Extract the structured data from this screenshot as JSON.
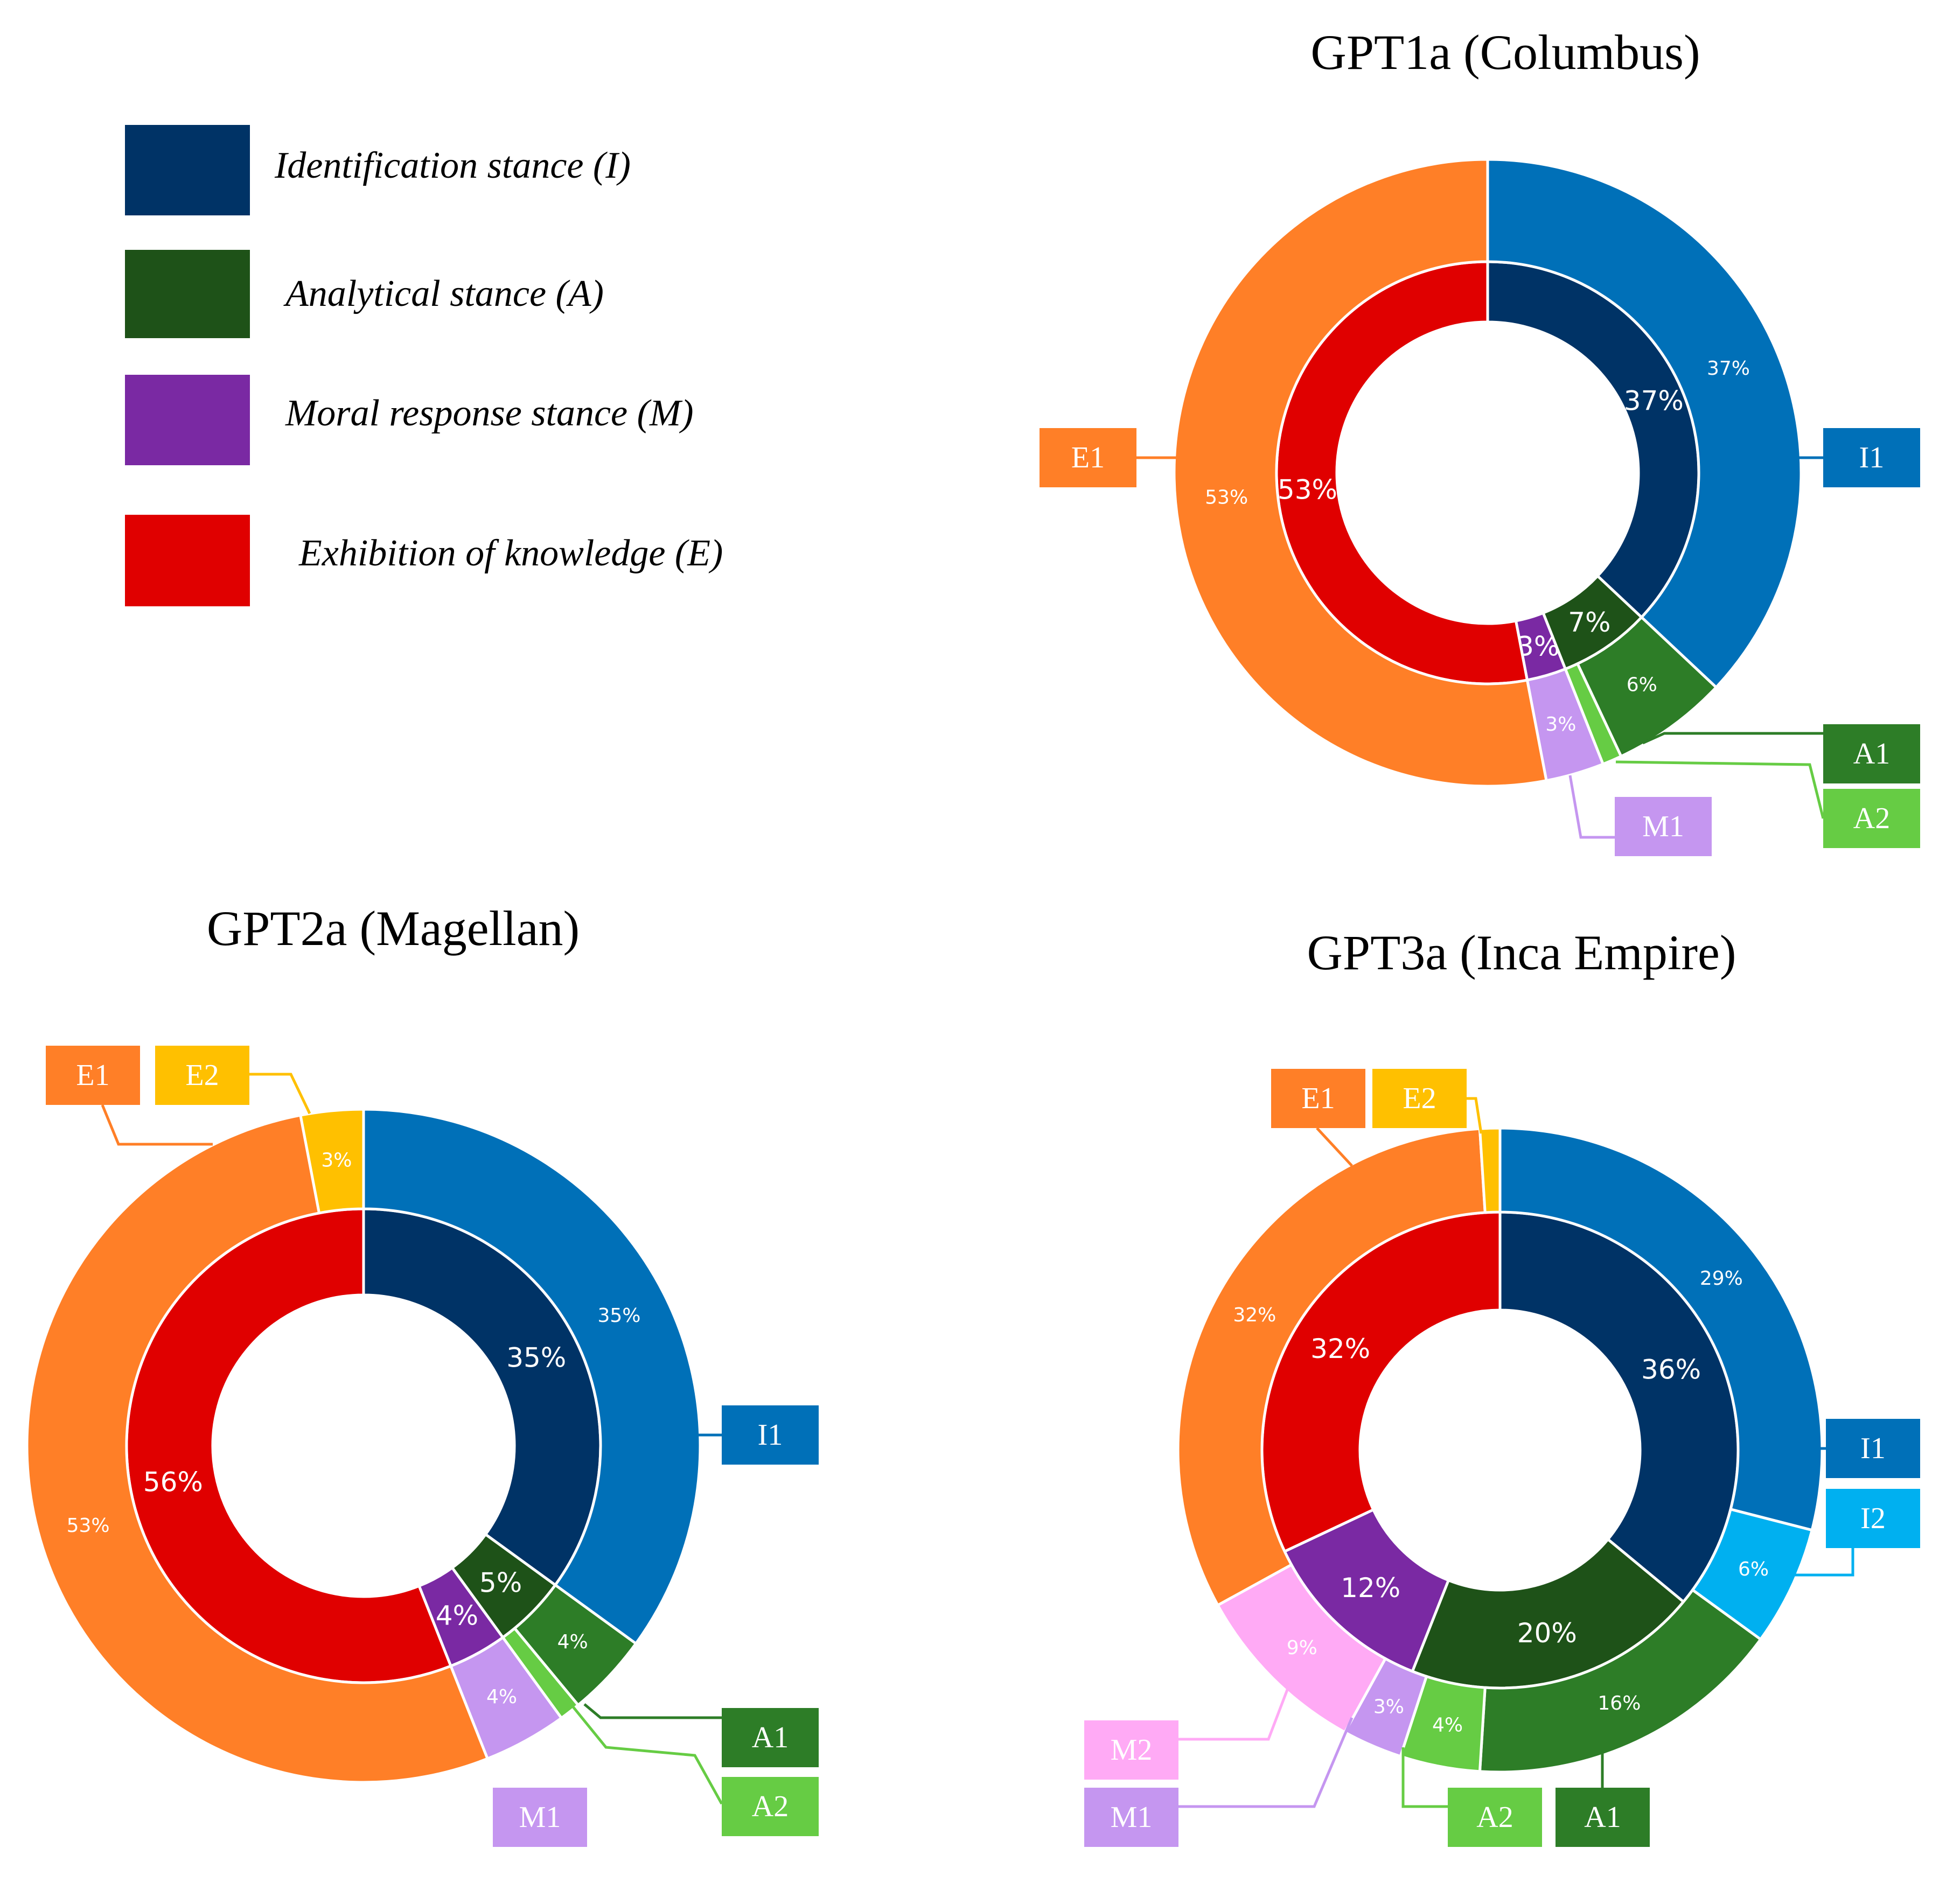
{
  "legend": [
    {
      "label": "Identification stance (I)",
      "color": "#003366"
    },
    {
      "label": "Analytical stance (A)",
      "color": "#1e5218"
    },
    {
      "label": "Moral response stance (M)",
      "color": "#7a29a3"
    },
    {
      "label": "Exhibition of knowledge (E)",
      "color": "#e00000"
    }
  ],
  "chart_data": [
    {
      "type": "pie",
      "title": "GPT1a (Columbus)",
      "inner": [
        {
          "label": "I",
          "value": 37,
          "text": "37%",
          "color": "#003366"
        },
        {
          "label": "A",
          "value": 7,
          "text": "7%",
          "color": "#1e5218"
        },
        {
          "label": "M",
          "value": 3,
          "text": "3%",
          "color": "#7a29a3"
        },
        {
          "label": "E",
          "value": 53,
          "text": "53%",
          "color": "#e00000"
        }
      ],
      "outer": [
        {
          "label": "I1",
          "value": 37,
          "text": "37%",
          "color": "#0070b8"
        },
        {
          "label": "A1",
          "value": 6,
          "text": "6%",
          "color": "#2d7d27"
        },
        {
          "label": "A2",
          "value": 1,
          "text": "",
          "color": "#66cc44"
        },
        {
          "label": "M1",
          "value": 3,
          "text": "3%",
          "color": "#c596f0"
        },
        {
          "label": "E1",
          "value": 53,
          "text": "53%",
          "color": "#ff7f27"
        }
      ]
    },
    {
      "type": "pie",
      "title": "GPT2a (Magellan)",
      "inner": [
        {
          "label": "I",
          "value": 35,
          "text": "35%",
          "color": "#003366"
        },
        {
          "label": "A",
          "value": 5,
          "text": "5%",
          "color": "#1e5218"
        },
        {
          "label": "M",
          "value": 4,
          "text": "4%",
          "color": "#7a29a3"
        },
        {
          "label": "E",
          "value": 56,
          "text": "56%",
          "color": "#e00000"
        }
      ],
      "outer": [
        {
          "label": "I1",
          "value": 35,
          "text": "35%",
          "color": "#0070b8"
        },
        {
          "label": "A1",
          "value": 4,
          "text": "4%",
          "color": "#2d7d27"
        },
        {
          "label": "A2",
          "value": 1,
          "text": "",
          "color": "#66cc44"
        },
        {
          "label": "M1",
          "value": 4,
          "text": "4%",
          "color": "#c596f0"
        },
        {
          "label": "E1",
          "value": 53,
          "text": "53%",
          "color": "#ff7f27"
        },
        {
          "label": "E2",
          "value": 3,
          "text": "3%",
          "color": "#ffc000"
        }
      ]
    },
    {
      "type": "pie",
      "title": "GPT3a (Inca Empire)",
      "inner": [
        {
          "label": "I",
          "value": 36,
          "text": "36%",
          "color": "#003366"
        },
        {
          "label": "A",
          "value": 20,
          "text": "20%",
          "color": "#1e5218"
        },
        {
          "label": "M",
          "value": 12,
          "text": "12%",
          "color": "#7a29a3"
        },
        {
          "label": "E",
          "value": 32,
          "text": "32%",
          "color": "#e00000"
        }
      ],
      "outer": [
        {
          "label": "I1",
          "value": 29,
          "text": "29%",
          "color": "#0070b8"
        },
        {
          "label": "I2",
          "value": 6,
          "text": "6%",
          "color": "#00b0f0"
        },
        {
          "label": "A1",
          "value": 16,
          "text": "16%",
          "color": "#2d7d27"
        },
        {
          "label": "A2",
          "value": 4,
          "text": "4%",
          "color": "#66cc44"
        },
        {
          "label": "M1",
          "value": 3,
          "text": "3%",
          "color": "#c596f0"
        },
        {
          "label": "M2",
          "value": 9,
          "text": "9%",
          "color": "#ffaaf5"
        },
        {
          "label": "E1",
          "value": 32,
          "text": "32%",
          "color": "#ff7f27"
        },
        {
          "label": "E2",
          "value": 1,
          "text": "",
          "color": "#ffc000"
        }
      ]
    }
  ]
}
